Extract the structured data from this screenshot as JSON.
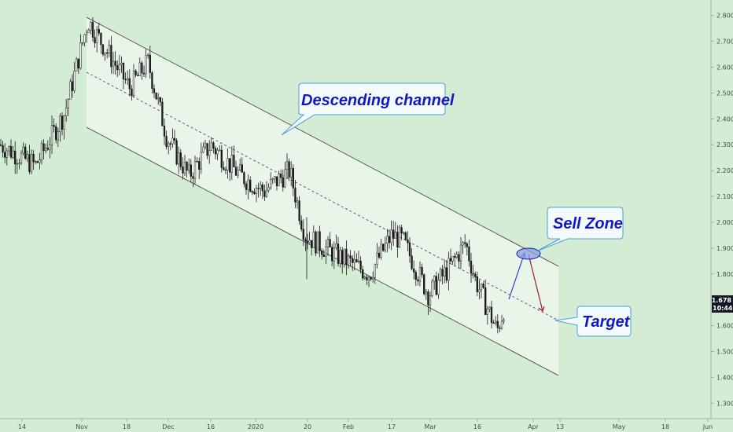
{
  "chart_data": {
    "type": "candlestick",
    "title": "",
    "grid": false,
    "ylim": [
      1.24,
      2.86
    ],
    "y_ticks": [
      "2.800",
      "2.700",
      "2.600",
      "2.500",
      "2.400",
      "2.300",
      "2.200",
      "2.100",
      "2.000",
      "1.900",
      "1.800",
      "1.700",
      "1.600",
      "1.500",
      "1.400",
      "1.300"
    ],
    "x_ticks": [
      "14",
      "Nov",
      "18",
      "Dec",
      "16",
      "2020",
      "20",
      "Feb",
      "17",
      "Mar",
      "16",
      "Apr",
      "13",
      "May",
      "18",
      "Jun"
    ],
    "last_price": "1.678",
    "countdown": "10:44:47",
    "series": [
      {
        "name": "",
        "ohlc_anchor_points": [
          {
            "t": "Oct 14",
            "close": 2.3
          },
          {
            "t": "Oct 24",
            "close": 2.22
          },
          {
            "t": "Oct 31",
            "close": 2.42
          },
          {
            "t": "Nov 4",
            "close": 2.78
          },
          {
            "t": "Nov 18",
            "close": 2.52
          },
          {
            "t": "Nov 25",
            "close": 2.62
          },
          {
            "t": "Dec 2",
            "close": 2.33
          },
          {
            "t": "Dec 10",
            "close": 2.18
          },
          {
            "t": "Dec 16",
            "close": 2.3
          },
          {
            "t": "Dec 28",
            "close": 2.18
          },
          {
            "t": "Jan 6",
            "close": 2.12
          },
          {
            "t": "Jan 16",
            "close": 2.2
          },
          {
            "t": "Jan 20",
            "close": 1.95
          },
          {
            "t": "Feb 1",
            "close": 1.88
          },
          {
            "t": "Feb 10",
            "close": 1.8
          },
          {
            "t": "Feb 17",
            "close": 1.95
          },
          {
            "t": "Feb 22",
            "close": 1.93
          },
          {
            "t": "Feb 28",
            "close": 1.72
          },
          {
            "t": "Mar 6",
            "close": 1.82
          },
          {
            "t": "Mar 12",
            "close": 1.92
          },
          {
            "t": "Mar 16",
            "close": 1.78
          },
          {
            "t": "Mar 22",
            "close": 1.58
          },
          {
            "t": "Mar 27",
            "close": 1.678
          }
        ]
      }
    ],
    "annotations": [
      {
        "label": "Descending channel",
        "kind": "callout"
      },
      {
        "label": "Sell Zone",
        "kind": "callout"
      },
      {
        "label": "Target",
        "kind": "callout"
      }
    ],
    "colors": {
      "background": "#d4ecd3",
      "channel_fill": "#eaf5ea",
      "candles": "#1a1a1a",
      "callout_text": "#1316c4",
      "projection_up": "#2f49d6",
      "projection_down": "#9b1c3d",
      "sell_zone": "#8e9ed8",
      "price_tag": "#131722"
    }
  }
}
